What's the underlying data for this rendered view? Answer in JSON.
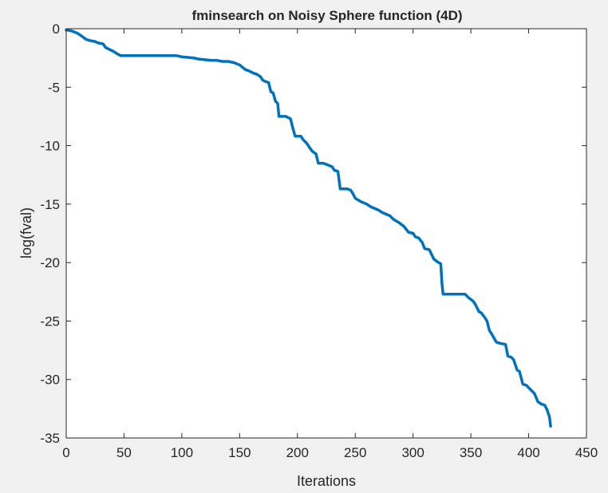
{
  "figure": {
    "background": "#f0f0f0"
  },
  "chart_data": {
    "type": "line",
    "title": "fminsearch on Noisy Sphere function (4D)",
    "xlabel": "Iterations",
    "ylabel": "log(fval)",
    "xlim": [
      0,
      450
    ],
    "ylim": [
      -35,
      0
    ],
    "xticks": [
      0,
      50,
      100,
      150,
      200,
      250,
      300,
      350,
      400,
      450
    ],
    "yticks": [
      0,
      -5,
      -10,
      -15,
      -20,
      -25,
      -30,
      -35
    ],
    "grid": false,
    "line_color": "#0072bd",
    "series": [
      {
        "x": [
          0,
          5,
          10,
          13,
          17,
          20,
          25,
          27,
          32,
          34,
          38,
          40,
          45,
          47,
          60,
          80,
          95,
          100,
          110,
          115,
          125,
          130,
          135,
          140,
          145,
          150,
          155,
          158,
          162,
          165,
          168,
          170,
          172,
          175,
          177,
          179,
          181,
          183,
          184,
          190,
          194,
          196,
          198,
          203,
          205,
          208,
          210,
          213,
          216,
          218,
          222,
          225,
          230,
          232,
          235,
          237,
          243,
          246,
          248,
          250,
          255,
          260,
          263,
          265,
          270,
          273,
          280,
          283,
          288,
          292,
          296,
          300,
          302,
          305,
          308,
          310,
          314,
          318,
          322,
          324,
          325,
          326,
          340,
          345,
          348,
          352,
          354,
          357,
          359,
          362,
          364,
          366,
          368,
          372,
          375,
          380,
          382,
          385,
          387,
          390,
          392,
          395,
          398,
          400,
          405,
          408,
          411,
          414,
          416,
          418,
          419
        ],
        "y": [
          -0.1,
          -0.2,
          -0.4,
          -0.6,
          -0.9,
          -1.0,
          -1.1,
          -1.2,
          -1.3,
          -1.6,
          -1.8,
          -1.9,
          -2.2,
          -2.3,
          -2.3,
          -2.3,
          -2.3,
          -2.4,
          -2.5,
          -2.6,
          -2.7,
          -2.7,
          -2.8,
          -2.8,
          -2.9,
          -3.1,
          -3.5,
          -3.6,
          -3.8,
          -3.9,
          -4.1,
          -4.4,
          -4.5,
          -4.6,
          -5.4,
          -5.5,
          -6.2,
          -6.4,
          -7.5,
          -7.5,
          -7.7,
          -8.5,
          -9.2,
          -9.2,
          -9.5,
          -9.8,
          -10.1,
          -10.5,
          -10.7,
          -11.5,
          -11.5,
          -11.6,
          -11.8,
          -12.1,
          -12.2,
          -13.7,
          -13.7,
          -13.8,
          -14.1,
          -14.5,
          -14.8,
          -15.0,
          -15.2,
          -15.3,
          -15.5,
          -15.7,
          -16.0,
          -16.3,
          -16.6,
          -16.9,
          -17.4,
          -17.5,
          -17.8,
          -17.9,
          -18.3,
          -18.8,
          -18.9,
          -19.7,
          -20.0,
          -20.1,
          -21.8,
          -22.7,
          -22.7,
          -22.7,
          -23.0,
          -23.3,
          -23.6,
          -24.2,
          -24.3,
          -24.7,
          -25.0,
          -25.8,
          -26.1,
          -26.8,
          -26.9,
          -27.0,
          -28.0,
          -28.1,
          -28.3,
          -29.2,
          -29.3,
          -30.4,
          -30.5,
          -30.7,
          -31.2,
          -31.9,
          -32.1,
          -32.2,
          -32.6,
          -33.2,
          -34.0
        ]
      }
    ]
  }
}
